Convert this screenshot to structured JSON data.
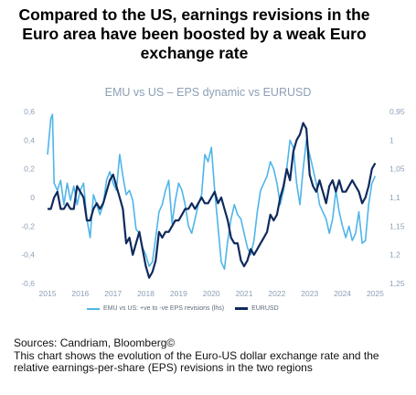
{
  "headline": [
    "Compared to the US, earnings revisions in the",
    "Euro area have been boosted by a weak Euro",
    "exchange rate"
  ],
  "chart_data": {
    "type": "line",
    "title": "EMU vs US – EPS dynamic vs EURUSD",
    "x_ticks": [
      "2015",
      "2016",
      "2017",
      "2018",
      "2019",
      "2020",
      "2021",
      "2022",
      "2023",
      "2024",
      "2025"
    ],
    "x_range": [
      2015,
      2025.1
    ],
    "left_axis": {
      "ticks": [
        "0,6",
        "0,4",
        "0,2",
        "0",
        "-0,2",
        "-0,4",
        "-0,6"
      ],
      "range": [
        -0.6,
        0.6
      ]
    },
    "right_axis": {
      "ticks": [
        "0,95",
        "1",
        "1,05",
        "1,1",
        "1,15",
        "1,2",
        "1,25"
      ],
      "range": [
        0.95,
        1.25
      ],
      "inverted": true
    },
    "grid": false,
    "legend_position": "bottom",
    "colors": {
      "eps": "#4fb5e8",
      "eurusd": "#0f2a5c",
      "axis_text": "#8da0b6"
    },
    "series": [
      {
        "name": "EMU vs US: +ve to -ve EPS revisions (lhs)",
        "axis": "left",
        "x": [
          2015.0,
          2015.1,
          2015.15,
          2015.2,
          2015.3,
          2015.4,
          2015.5,
          2015.6,
          2015.7,
          2015.8,
          2015.9,
          2016.0,
          2016.1,
          2016.2,
          2016.3,
          2016.4,
          2016.5,
          2016.6,
          2016.7,
          2016.8,
          2016.9,
          2017.0,
          2017.1,
          2017.2,
          2017.3,
          2017.4,
          2017.5,
          2017.6,
          2017.7,
          2017.8,
          2017.9,
          2018.0,
          2018.1,
          2018.2,
          2018.3,
          2018.4,
          2018.5,
          2018.6,
          2018.7,
          2018.8,
          2018.9,
          2019.0,
          2019.1,
          2019.2,
          2019.3,
          2019.4,
          2019.5,
          2019.6,
          2019.7,
          2019.8,
          2019.9,
          2020.0,
          2020.1,
          2020.2,
          2020.3,
          2020.4,
          2020.5,
          2020.6,
          2020.7,
          2020.8,
          2020.9,
          2021.0,
          2021.1,
          2021.2,
          2021.3,
          2021.4,
          2021.5,
          2021.6,
          2021.7,
          2021.8,
          2021.9,
          2022.0,
          2022.1,
          2022.2,
          2022.3,
          2022.4,
          2022.5,
          2022.6,
          2022.7,
          2022.8,
          2022.9,
          2023.0,
          2023.1,
          2023.2,
          2023.3,
          2023.4,
          2023.5,
          2023.6,
          2023.7,
          2023.8,
          2023.9,
          2024.0,
          2024.1,
          2024.2,
          2024.3,
          2024.4,
          2024.5,
          2024.6,
          2024.7,
          2024.8,
          2024.9,
          2025.0
        ],
        "values": [
          0.3,
          0.55,
          0.58,
          0.1,
          0.05,
          0.12,
          -0.05,
          0.1,
          -0.02,
          0.08,
          -0.05,
          0.05,
          0.1,
          -0.15,
          -0.28,
          0.02,
          -0.05,
          -0.12,
          -0.05,
          0.12,
          0.18,
          0.1,
          0.05,
          0.3,
          0.15,
          0.02,
          0.05,
          -0.02,
          -0.22,
          -0.25,
          -0.35,
          -0.4,
          -0.48,
          -0.45,
          -0.28,
          -0.1,
          -0.05,
          0.05,
          0.12,
          -0.18,
          -0.02,
          0.1,
          0.05,
          -0.05,
          -0.2,
          -0.25,
          -0.15,
          -0.05,
          0.02,
          0.3,
          0.25,
          0.35,
          0.05,
          -0.2,
          -0.45,
          -0.5,
          -0.3,
          -0.15,
          -0.05,
          -0.12,
          -0.15,
          -0.25,
          -0.35,
          -0.4,
          -0.3,
          -0.1,
          0.05,
          0.1,
          0.15,
          0.25,
          0.2,
          0.1,
          -0.05,
          0.05,
          0.2,
          0.4,
          0.35,
          0.1,
          -0.05,
          0.2,
          0.4,
          0.3,
          0.2,
          0.1,
          -0.05,
          -0.1,
          -0.15,
          -0.25,
          -0.15,
          0.05,
          -0.1,
          -0.2,
          -0.28,
          -0.2,
          -0.3,
          -0.25,
          -0.1,
          -0.32,
          -0.3,
          -0.05,
          0.1,
          0.15
        ]
      },
      {
        "name": "EURUSD",
        "axis": "right",
        "x": [
          2015.0,
          2015.1,
          2015.2,
          2015.3,
          2015.4,
          2015.5,
          2015.6,
          2015.7,
          2015.8,
          2015.9,
          2016.0,
          2016.1,
          2016.2,
          2016.3,
          2016.4,
          2016.5,
          2016.6,
          2016.7,
          2016.8,
          2016.9,
          2017.0,
          2017.1,
          2017.2,
          2017.3,
          2017.4,
          2017.5,
          2017.6,
          2017.7,
          2017.8,
          2017.9,
          2018.0,
          2018.1,
          2018.2,
          2018.3,
          2018.4,
          2018.5,
          2018.6,
          2018.7,
          2018.8,
          2018.9,
          2019.0,
          2019.1,
          2019.2,
          2019.3,
          2019.4,
          2019.5,
          2019.6,
          2019.7,
          2019.8,
          2019.9,
          2020.0,
          2020.1,
          2020.2,
          2020.3,
          2020.4,
          2020.5,
          2020.6,
          2020.7,
          2020.8,
          2020.9,
          2021.0,
          2021.1,
          2021.2,
          2021.3,
          2021.4,
          2021.5,
          2021.6,
          2021.7,
          2021.8,
          2021.9,
          2022.0,
          2022.1,
          2022.2,
          2022.3,
          2022.4,
          2022.5,
          2022.6,
          2022.7,
          2022.8,
          2022.9,
          2023.0,
          2023.1,
          2023.2,
          2023.3,
          2023.4,
          2023.5,
          2023.6,
          2023.7,
          2023.8,
          2023.9,
          2024.0,
          2024.1,
          2024.2,
          2024.3,
          2024.4,
          2024.5,
          2024.6,
          2024.7,
          2024.8,
          2024.9,
          2025.0
        ],
        "values": [
          1.12,
          1.12,
          1.1,
          1.09,
          1.12,
          1.12,
          1.11,
          1.12,
          1.12,
          1.08,
          1.09,
          1.1,
          1.14,
          1.14,
          1.12,
          1.11,
          1.12,
          1.11,
          1.09,
          1.07,
          1.06,
          1.08,
          1.1,
          1.12,
          1.18,
          1.17,
          1.2,
          1.18,
          1.16,
          1.19,
          1.22,
          1.24,
          1.23,
          1.21,
          1.16,
          1.17,
          1.16,
          1.16,
          1.15,
          1.14,
          1.14,
          1.13,
          1.12,
          1.12,
          1.11,
          1.12,
          1.11,
          1.1,
          1.11,
          1.11,
          1.1,
          1.09,
          1.11,
          1.1,
          1.12,
          1.14,
          1.17,
          1.18,
          1.18,
          1.21,
          1.22,
          1.21,
          1.19,
          1.2,
          1.19,
          1.18,
          1.17,
          1.16,
          1.13,
          1.14,
          1.13,
          1.1,
          1.08,
          1.05,
          1.07,
          1.02,
          1.0,
          0.99,
          0.97,
          0.98,
          1.06,
          1.08,
          1.09,
          1.07,
          1.09,
          1.11,
          1.08,
          1.07,
          1.09,
          1.07,
          1.09,
          1.09,
          1.08,
          1.07,
          1.08,
          1.09,
          1.11,
          1.1,
          1.08,
          1.05,
          1.04
        ]
      }
    ]
  },
  "notes": [
    "Sources: Candriam, Bloomberg©",
    "This chart shows the evolution of the Euro-US dollar exchange rate and the relative earnings-per-share (EPS) revisions in the two regions"
  ]
}
